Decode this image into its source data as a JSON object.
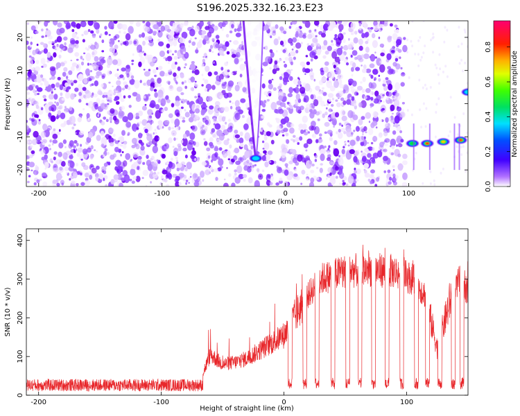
{
  "title": "S196.2025.332.16.23.E23",
  "chart_data": [
    {
      "type": "heatmap",
      "xlabel": "Height of straight line (km)",
      "ylabel": "Frequency (Hz)",
      "xlim": [
        -210,
        148
      ],
      "ylim": [
        -25,
        25
      ],
      "xticks": [
        -200,
        -100,
        0,
        100
      ],
      "yticks": [
        -20,
        -10,
        0,
        10,
        20
      ],
      "colorbar": {
        "label": "Normalized spectral amplitude",
        "range": [
          0,
          0.95
        ],
        "ticks": [
          0.0,
          0.2,
          0.4,
          0.6,
          0.8
        ],
        "colors": [
          "#ffffff",
          "#6a00cc",
          "#0000ff",
          "#00e0ff",
          "#00ff00",
          "#ffff00",
          "#ff8000",
          "#ff0000",
          "#ff0060"
        ]
      },
      "features": [
        {
          "x": -24,
          "y": -16.5,
          "value": 0.35
        },
        {
          "x": 103,
          "y": -12,
          "value": 0.55
        },
        {
          "x": 115,
          "y": -12,
          "value": 0.85
        },
        {
          "x": 128,
          "y": -11.5,
          "value": 0.7
        },
        {
          "x": 142,
          "y": -11,
          "value": 0.8
        },
        {
          "x": 148,
          "y": 3.5,
          "value": 0.4
        }
      ]
    },
    {
      "type": "line",
      "xlabel": "Height of straight line (km)",
      "ylabel": "SNR (10 * v/v)",
      "xlim": [
        -210,
        150
      ],
      "ylim": [
        0,
        430
      ],
      "xticks": [
        -200,
        -100,
        0,
        100
      ],
      "yticks": [
        0,
        100,
        200,
        300,
        400
      ],
      "color": "#e8262a",
      "envelope": [
        {
          "x": -210,
          "y": 22
        },
        {
          "x": -70,
          "y": 25
        },
        {
          "x": -60,
          "y": 105
        },
        {
          "x": -50,
          "y": 80
        },
        {
          "x": -40,
          "y": 85
        },
        {
          "x": -30,
          "y": 95
        },
        {
          "x": -20,
          "y": 115
        },
        {
          "x": -10,
          "y": 135
        },
        {
          "x": 0,
          "y": 155
        },
        {
          "x": 10,
          "y": 210
        },
        {
          "x": 20,
          "y": 260
        },
        {
          "x": 30,
          "y": 300
        },
        {
          "x": 50,
          "y": 320
        },
        {
          "x": 70,
          "y": 325
        },
        {
          "x": 90,
          "y": 320
        },
        {
          "x": 105,
          "y": 300
        },
        {
          "x": 115,
          "y": 260
        },
        {
          "x": 125,
          "y": 120
        },
        {
          "x": 135,
          "y": 240
        },
        {
          "x": 145,
          "y": 310
        },
        {
          "x": 150,
          "y": 260
        }
      ],
      "dropouts": [
        5,
        17,
        27,
        40,
        52,
        62,
        73,
        84,
        96,
        108,
        117,
        127,
        138,
        145
      ]
    }
  ]
}
